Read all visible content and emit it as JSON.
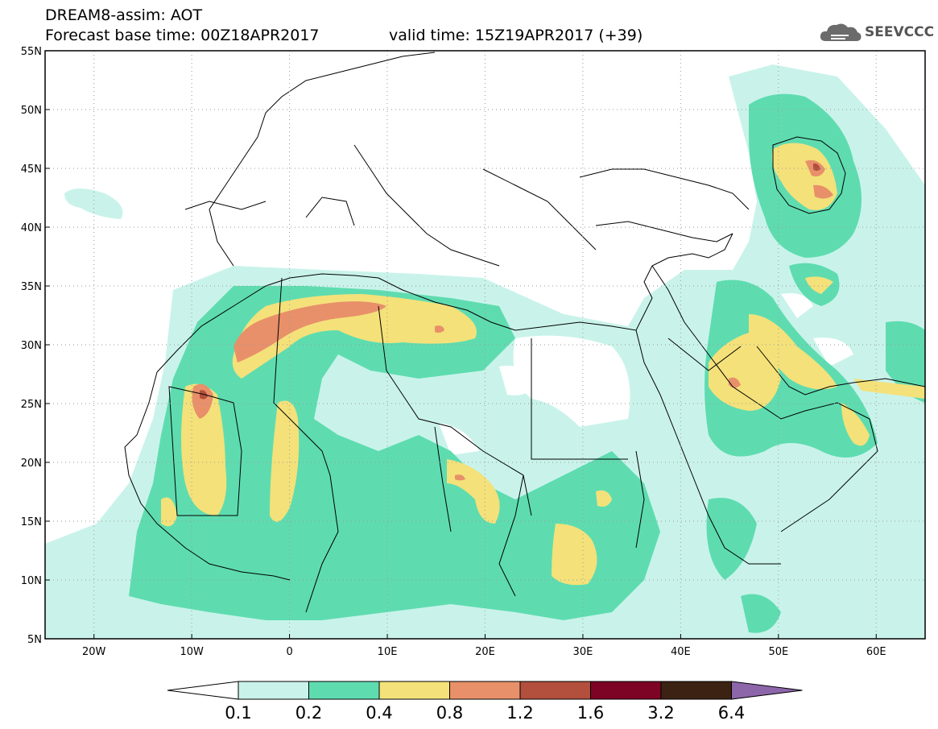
{
  "header": {
    "title": "DREAM8-assim: AOT",
    "base_time": "Forecast base time: 00Z18APR2017",
    "valid_time": "valid time: 15Z19APR2017 (+39)"
  },
  "logo": {
    "text": "SEEVCCC",
    "icon": "cloud-icon"
  },
  "map": {
    "lon_range": [
      -25,
      65
    ],
    "lat_range": [
      5,
      55
    ],
    "lat_ticks": [
      {
        "value": 55,
        "label": "55N"
      },
      {
        "value": 50,
        "label": "50N"
      },
      {
        "value": 45,
        "label": "45N"
      },
      {
        "value": 40,
        "label": "40N"
      },
      {
        "value": 35,
        "label": "35N"
      },
      {
        "value": 30,
        "label": "30N"
      },
      {
        "value": 25,
        "label": "25N"
      },
      {
        "value": 20,
        "label": "20N"
      },
      {
        "value": 15,
        "label": "15N"
      },
      {
        "value": 10,
        "label": "10N"
      },
      {
        "value": 5,
        "label": "5N"
      }
    ],
    "lon_ticks": [
      {
        "value": -20,
        "label": "20W"
      },
      {
        "value": -10,
        "label": "10W"
      },
      {
        "value": 0,
        "label": "0"
      },
      {
        "value": 10,
        "label": "10E"
      },
      {
        "value": 20,
        "label": "20E"
      },
      {
        "value": 30,
        "label": "30E"
      },
      {
        "value": 40,
        "label": "40E"
      },
      {
        "value": 50,
        "label": "50E"
      },
      {
        "value": 60,
        "label": "60E"
      }
    ],
    "grid": true
  },
  "colorbar": {
    "labels": [
      "0.1",
      "0.2",
      "0.4",
      "0.8",
      "1.2",
      "1.6",
      "3.2",
      "6.4"
    ],
    "colors": [
      "#ffffff",
      "#c9f3ea",
      "#5edcb0",
      "#f4e17a",
      "#e8906a",
      "#b24f3d",
      "#7d0424",
      "#3b2213",
      "#8d66aa"
    ]
  }
}
